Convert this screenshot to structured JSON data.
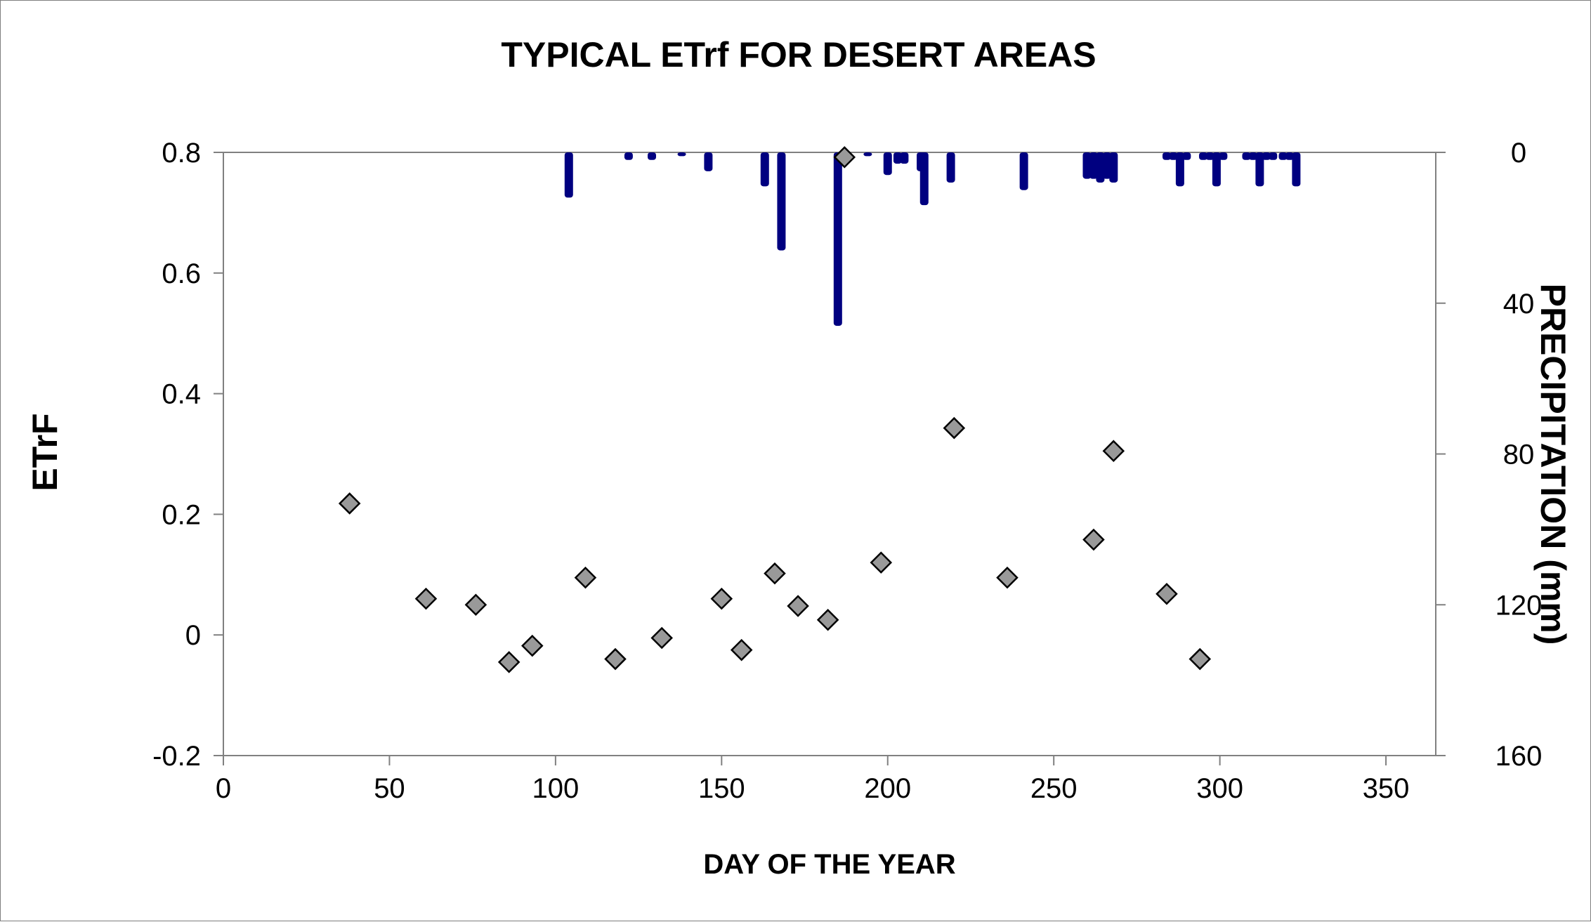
{
  "chart_data": {
    "type": "scatter",
    "title": "TYPICAL ETrf FOR DESERT AREAS",
    "xlabel": "DAY OF THE YEAR",
    "ylabel": "ETrF",
    "y2label": "PRECIPITATION (mm)",
    "xlim": [
      0,
      365
    ],
    "ylim": [
      -0.2,
      0.8
    ],
    "y2lim": [
      0,
      160
    ],
    "y2_inverted": true,
    "x_ticks": [
      "0",
      "50",
      "100",
      "150",
      "200",
      "250",
      "300",
      "350"
    ],
    "y_ticks": [
      "-0.2",
      "0",
      "0.2",
      "0.4",
      "0.6",
      "0.8"
    ],
    "y2_ticks": [
      "0",
      "40",
      "80",
      "120",
      "160"
    ],
    "grid": false,
    "legend": "none",
    "series": [
      {
        "kind": "scatter-diamond",
        "axis": "left",
        "color": "#999999",
        "edge_color": "#000000",
        "x": [
          38,
          61,
          76,
          86,
          93,
          109,
          118,
          132,
          150,
          156,
          166,
          173,
          182,
          187,
          198,
          220,
          236,
          262,
          268,
          284,
          294
        ],
        "y": [
          0.218,
          0.06,
          0.05,
          -0.045,
          -0.018,
          0.095,
          -0.04,
          -0.005,
          0.06,
          -0.025,
          0.102,
          0.048,
          0.025,
          0.792,
          0.12,
          0.343,
          0.095,
          0.158,
          0.305,
          0.068,
          -0.04
        ]
      },
      {
        "kind": "bar",
        "axis": "right",
        "color": "#000080",
        "x": [
          104,
          122,
          129,
          138,
          146,
          163,
          168,
          185,
          194,
          200,
          203,
          205,
          210,
          211,
          219,
          241,
          260,
          262,
          264,
          266,
          268,
          284,
          286,
          288,
          290,
          295,
          297,
          299,
          301,
          308,
          310,
          312,
          314,
          316,
          319,
          321,
          323
        ],
        "values": [
          12,
          2,
          2,
          1,
          5,
          9,
          26,
          46,
          1,
          6,
          3,
          3,
          5,
          14,
          8,
          10,
          7,
          7,
          8,
          7,
          8,
          2,
          2,
          9,
          2,
          2,
          2,
          9,
          2,
          2,
          2,
          9,
          2,
          2,
          2,
          2,
          9
        ]
      }
    ]
  }
}
